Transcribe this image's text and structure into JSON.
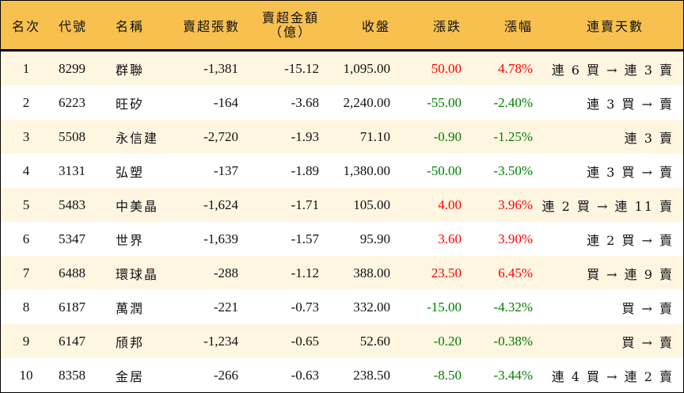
{
  "colors": {
    "header_bg": "#F7C04F",
    "alt_row_bg": "#FFF6E2",
    "up": "#FF0000",
    "down": "#008000"
  },
  "headers": [
    "名次",
    "代號",
    "名稱",
    "賣超張數",
    "賣超金額",
    "（億）",
    "收盤",
    "漲跌",
    "漲幅",
    "連賣天數"
  ],
  "rows": [
    {
      "rank": "1",
      "code": "8299",
      "name": "群聯",
      "shares": "-1,381",
      "amount": "-15.12",
      "close": "1,095.00",
      "change": "50.00",
      "pct": "4.78%",
      "dir": "up",
      "streak": "連 6 買 → 連 3 賣"
    },
    {
      "rank": "2",
      "code": "6223",
      "name": "旺矽",
      "shares": "-164",
      "amount": "-3.68",
      "close": "2,240.00",
      "change": "-55.00",
      "pct": "-2.40%",
      "dir": "down",
      "streak": "連 3 買 → 賣"
    },
    {
      "rank": "3",
      "code": "5508",
      "name": "永信建",
      "shares": "-2,720",
      "amount": "-1.93",
      "close": "71.10",
      "change": "-0.90",
      "pct": "-1.25%",
      "dir": "down",
      "streak": "連 3 賣"
    },
    {
      "rank": "4",
      "code": "3131",
      "name": "弘塑",
      "shares": "-137",
      "amount": "-1.89",
      "close": "1,380.00",
      "change": "-50.00",
      "pct": "-3.50%",
      "dir": "down",
      "streak": "連 3 買 → 賣"
    },
    {
      "rank": "5",
      "code": "5483",
      "name": "中美晶",
      "shares": "-1,624",
      "amount": "-1.71",
      "close": "105.00",
      "change": "4.00",
      "pct": "3.96%",
      "dir": "up",
      "streak": "連 2 買 → 連 11 賣"
    },
    {
      "rank": "6",
      "code": "5347",
      "name": "世界",
      "shares": "-1,639",
      "amount": "-1.57",
      "close": "95.90",
      "change": "3.60",
      "pct": "3.90%",
      "dir": "up",
      "streak": "連 2 買 → 賣"
    },
    {
      "rank": "7",
      "code": "6488",
      "name": "環球晶",
      "shares": "-288",
      "amount": "-1.12",
      "close": "388.00",
      "change": "23.50",
      "pct": "6.45%",
      "dir": "up",
      "streak": "買 → 連 9 賣"
    },
    {
      "rank": "8",
      "code": "6187",
      "name": "萬潤",
      "shares": "-221",
      "amount": "-0.73",
      "close": "332.00",
      "change": "-15.00",
      "pct": "-4.32%",
      "dir": "down",
      "streak": "買 → 賣"
    },
    {
      "rank": "9",
      "code": "6147",
      "name": "頎邦",
      "shares": "-1,234",
      "amount": "-0.65",
      "close": "52.60",
      "change": "-0.20",
      "pct": "-0.38%",
      "dir": "down",
      "streak": "買 → 賣"
    },
    {
      "rank": "10",
      "code": "8358",
      "name": "金居",
      "shares": "-266",
      "amount": "-0.63",
      "close": "238.50",
      "change": "-8.50",
      "pct": "-3.44%",
      "dir": "down",
      "streak": "連 4 買 → 連 2 賣"
    }
  ]
}
